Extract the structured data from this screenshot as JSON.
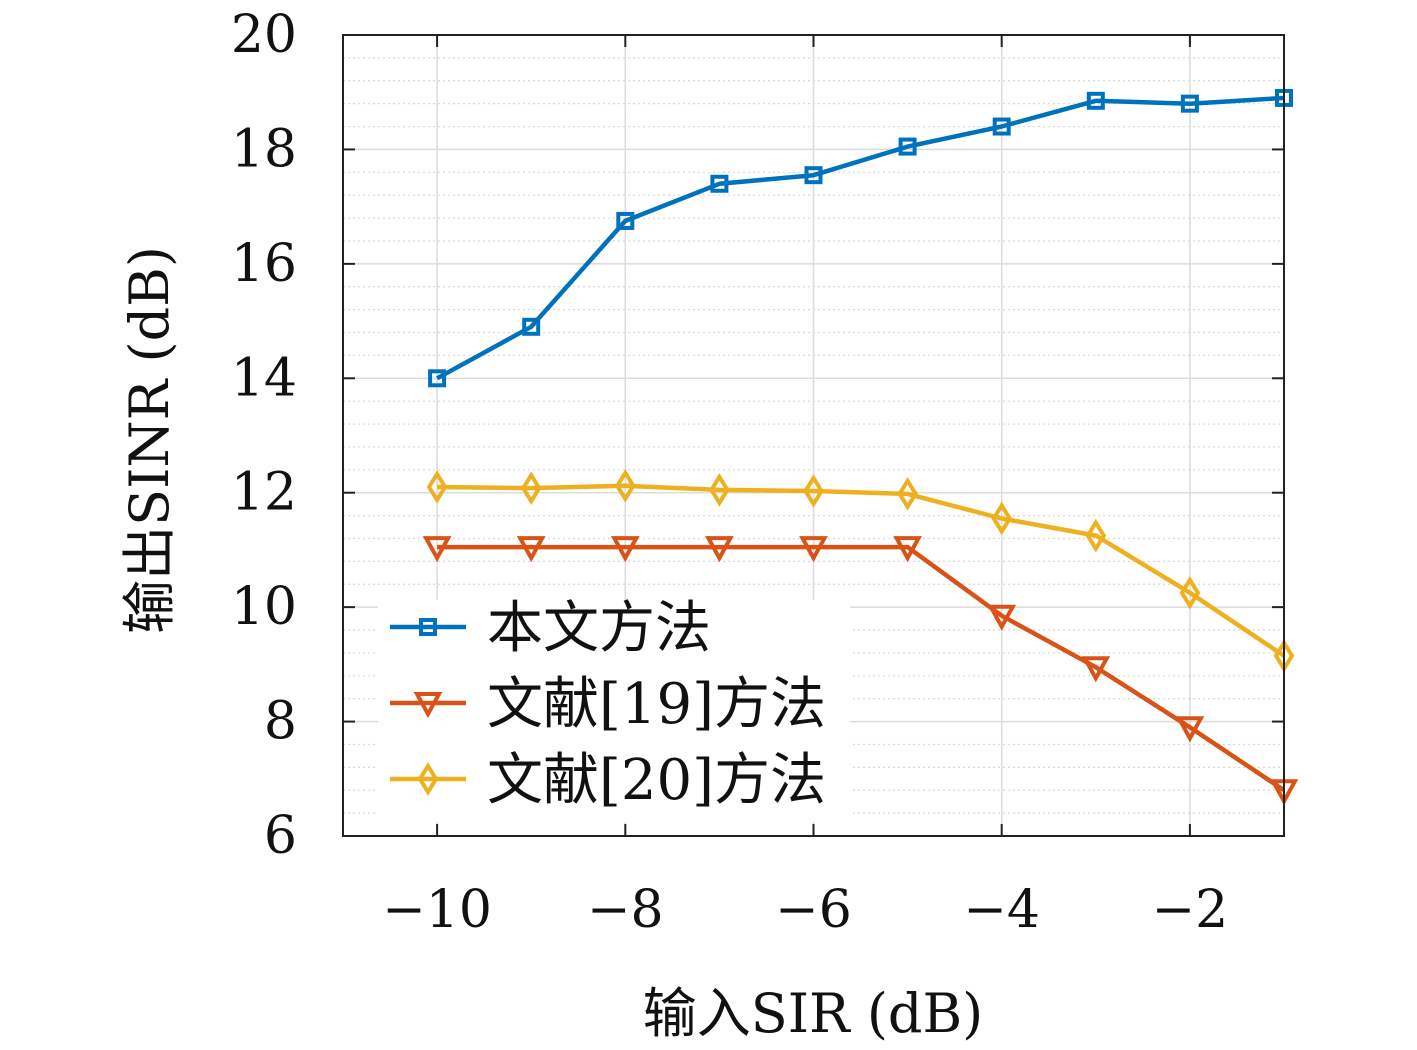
{
  "chart_data": {
    "type": "line",
    "xlabel": "输入SIR (dB)",
    "ylabel": "输出SINR (dB)",
    "xlim": [
      -11,
      -1
    ],
    "ylim": [
      6,
      20
    ],
    "x_ticks": [
      -10,
      -8,
      -6,
      -4,
      -2
    ],
    "x_tick_labels": [
      "−10",
      "−8",
      "−6",
      "−4",
      "−2"
    ],
    "y_ticks": [
      6,
      8,
      10,
      12,
      14,
      16,
      18,
      20
    ],
    "y_tick_labels": [
      "6",
      "8",
      "10",
      "12",
      "14",
      "16",
      "18",
      "20"
    ],
    "grid": true,
    "minor_grid": true,
    "legend_position": "lower-left",
    "x": [
      -10,
      -9,
      -8,
      -7,
      -6,
      -5,
      -4,
      -3,
      -2,
      -1
    ],
    "series": [
      {
        "name": "本文方法",
        "color": "#0072BD",
        "marker": "square",
        "values": [
          14.0,
          14.9,
          16.75,
          17.4,
          17.55,
          18.05,
          18.4,
          18.85,
          18.8,
          18.9
        ]
      },
      {
        "name": "文献[19]方法",
        "color": "#D95319",
        "marker": "triangle-down",
        "values": [
          11.05,
          11.05,
          11.05,
          11.05,
          11.05,
          11.05,
          9.85,
          8.95,
          7.9,
          6.8
        ]
      },
      {
        "name": "文献[20]方法",
        "color": "#EDB120",
        "marker": "diamond",
        "values": [
          12.1,
          12.08,
          12.12,
          12.05,
          12.03,
          11.98,
          11.55,
          11.25,
          10.25,
          9.15
        ]
      }
    ]
  }
}
